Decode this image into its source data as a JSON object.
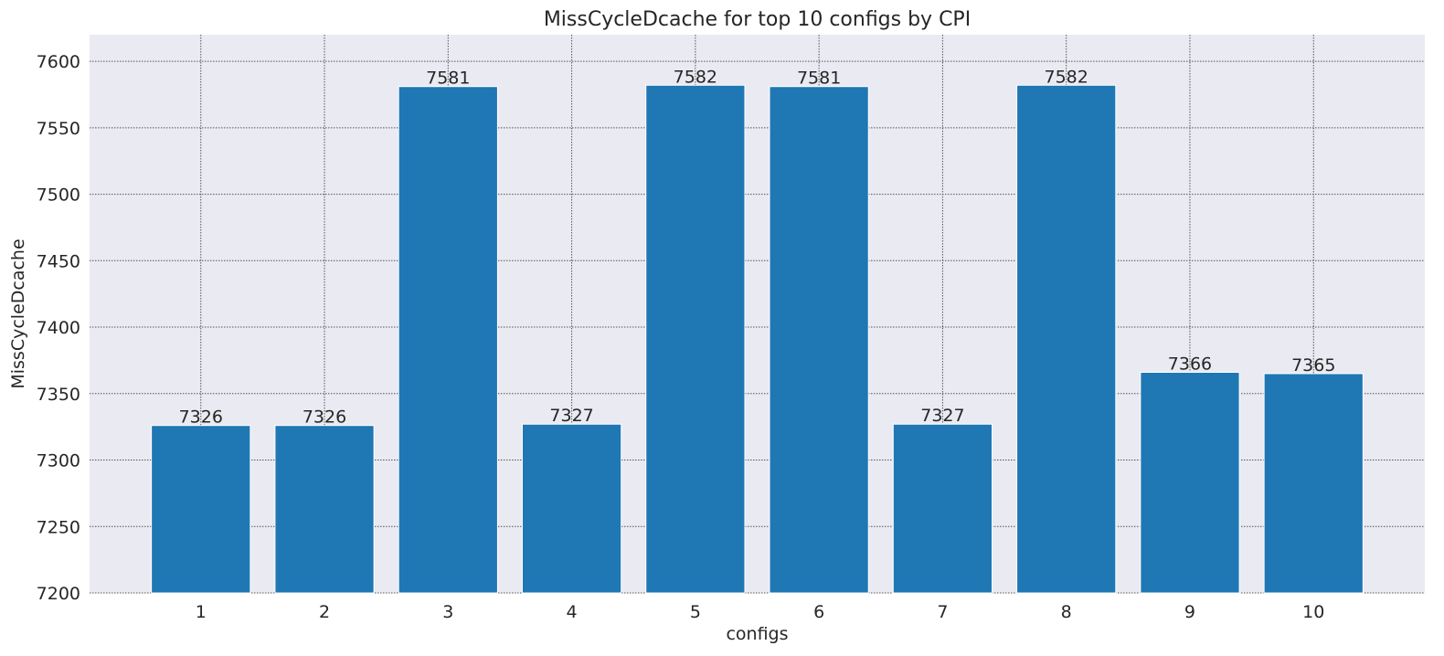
{
  "chart_data": {
    "type": "bar",
    "title": "MissCycleDcache for top 10 configs by CPI",
    "xlabel": "configs",
    "ylabel": "MissCycleDcache",
    "categories": [
      "1",
      "2",
      "3",
      "4",
      "5",
      "6",
      "7",
      "8",
      "9",
      "10"
    ],
    "values": [
      7326,
      7326,
      7581,
      7327,
      7582,
      7581,
      7327,
      7582,
      7366,
      7365
    ],
    "data_labels": [
      "7326",
      "7326",
      "7581",
      "7327",
      "7582",
      "7581",
      "7327",
      "7582",
      "7366",
      "7365"
    ],
    "ylim": [
      7200,
      7620
    ],
    "yticks": [
      7200,
      7250,
      7300,
      7350,
      7400,
      7450,
      7500,
      7550,
      7600
    ],
    "ytick_labels": [
      "7200",
      "7250",
      "7300",
      "7350",
      "7400",
      "7450",
      "7500",
      "7550",
      "7600"
    ],
    "grid": true,
    "colors": {
      "bar": "#1f77b4",
      "plot_background": "#eaeaf2",
      "grid": "#555555"
    }
  }
}
